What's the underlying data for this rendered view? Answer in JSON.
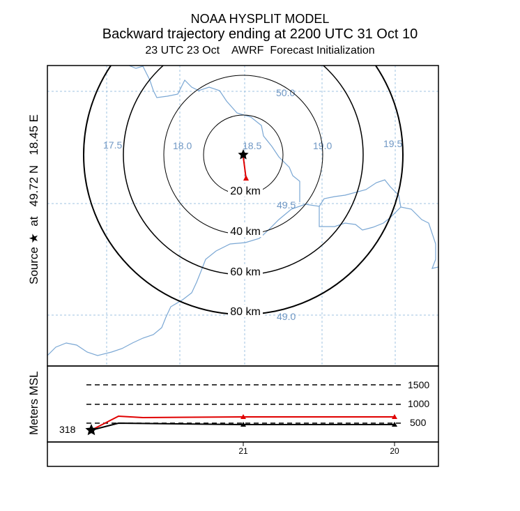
{
  "header": {
    "line1": "NOAA HYSPLIT MODEL",
    "line2": "Backward trajectory ending at 2200 UTC 31 Oct 10",
    "line3": "23 UTC 23 Oct    AWRF  Forecast Initialization"
  },
  "map": {
    "source_label": "Source ★  at   49.72 N   18.45 E",
    "longitude_labels": [
      "17.5",
      "18.0",
      "18.5",
      "19.0",
      "19.5"
    ],
    "latitude_labels": [
      "50.0",
      "49.5",
      "49.0"
    ],
    "range_rings": [
      "20 km",
      "40 km",
      "60 km",
      "80 km"
    ],
    "colors": {
      "grid": "#9fc3e0",
      "border": "#7aa7d4",
      "trajectory": "#e00000",
      "label": "#6f97c4"
    }
  },
  "height_panel": {
    "ylabel": "Meters MSL",
    "start_height": "318",
    "reference_levels": [
      "1500",
      "1000",
      "500"
    ],
    "time_labels": [
      "21",
      "20"
    ]
  }
}
